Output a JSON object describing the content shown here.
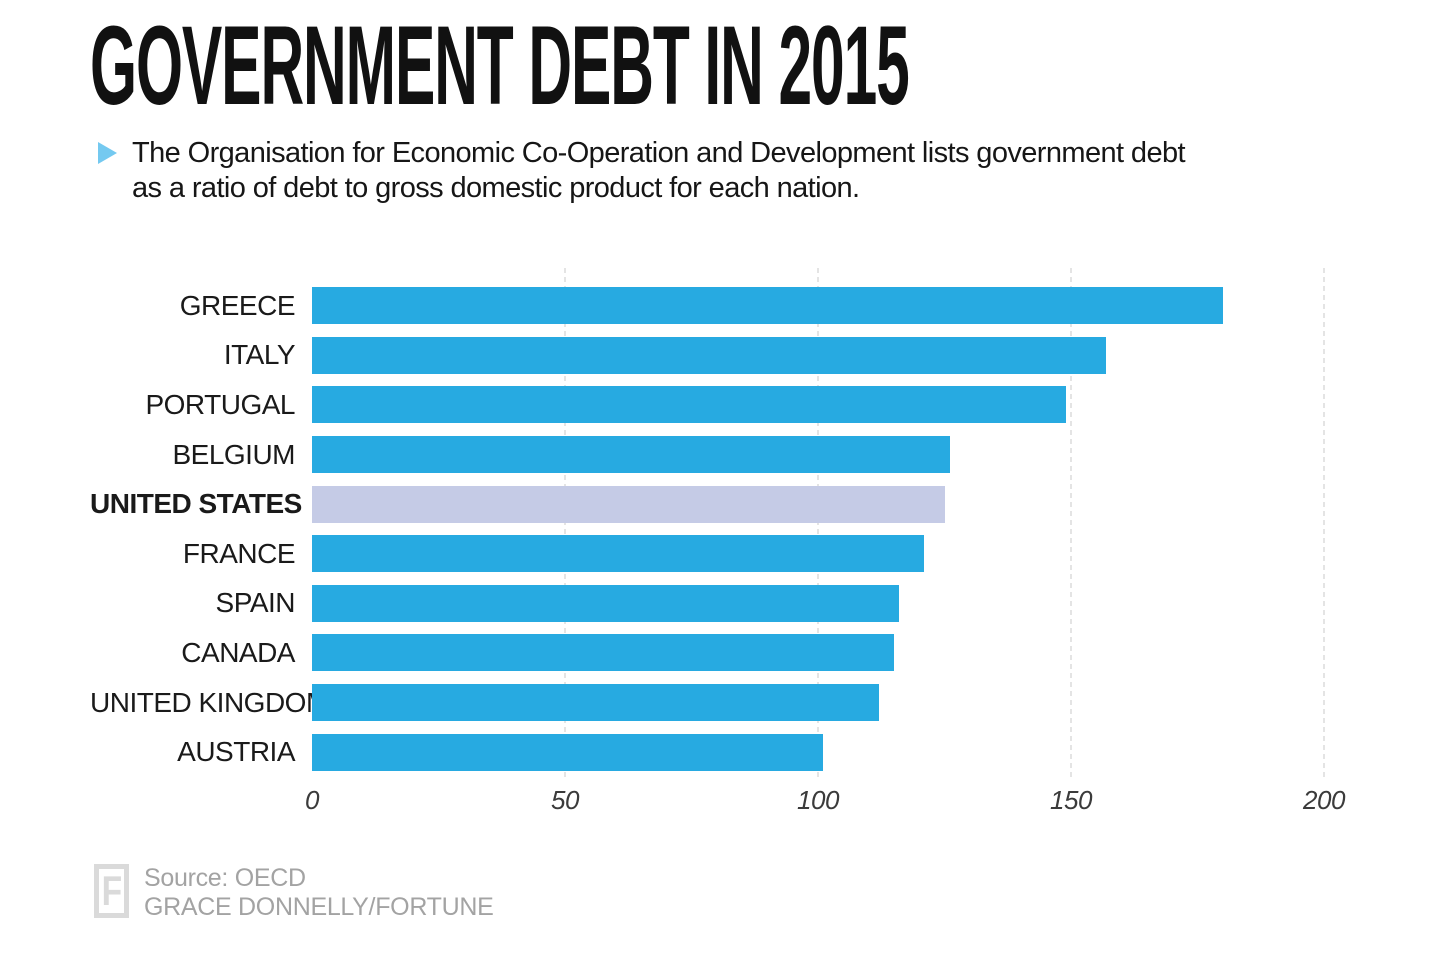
{
  "header": {
    "title": "GOVERNMENT DEBT IN 2015",
    "subtitle_line1": "The Organisation for Economic Co-Operation and Development lists government debt",
    "subtitle_line2": "as a ratio of debt to gross domestic product for each nation.",
    "bullet_color": "#74c9f0"
  },
  "chart_data": {
    "type": "bar",
    "orientation": "horizontal",
    "title": "Government debt in 2015, ratio of debt to gross domestic product",
    "categories": [
      "GREECE",
      "ITALY",
      "PORTUGAL",
      "BELGIUM",
      "UNITED STATES",
      "FRANCE",
      "SPAIN",
      "CANADA",
      "UNITED KINGDOM",
      "AUSTRIA"
    ],
    "values": [
      180,
      157,
      149,
      126,
      125,
      121,
      116,
      115,
      112,
      101
    ],
    "xlim": [
      0,
      200
    ],
    "x_ticks": [
      0,
      50,
      100,
      150,
      200
    ],
    "highlight_index": 4,
    "highlight_category": "UNITED STATES",
    "bar_color": "#27aae1",
    "highlight_color": "#c5cbe6",
    "gridline_color": "#e4e4e4",
    "grid": "vertical-dashed",
    "legend": "none"
  },
  "footer": {
    "logo_letter": "F",
    "source": "Source: OECD",
    "credit": "GRACE DONNELLY/FORTUNE"
  }
}
